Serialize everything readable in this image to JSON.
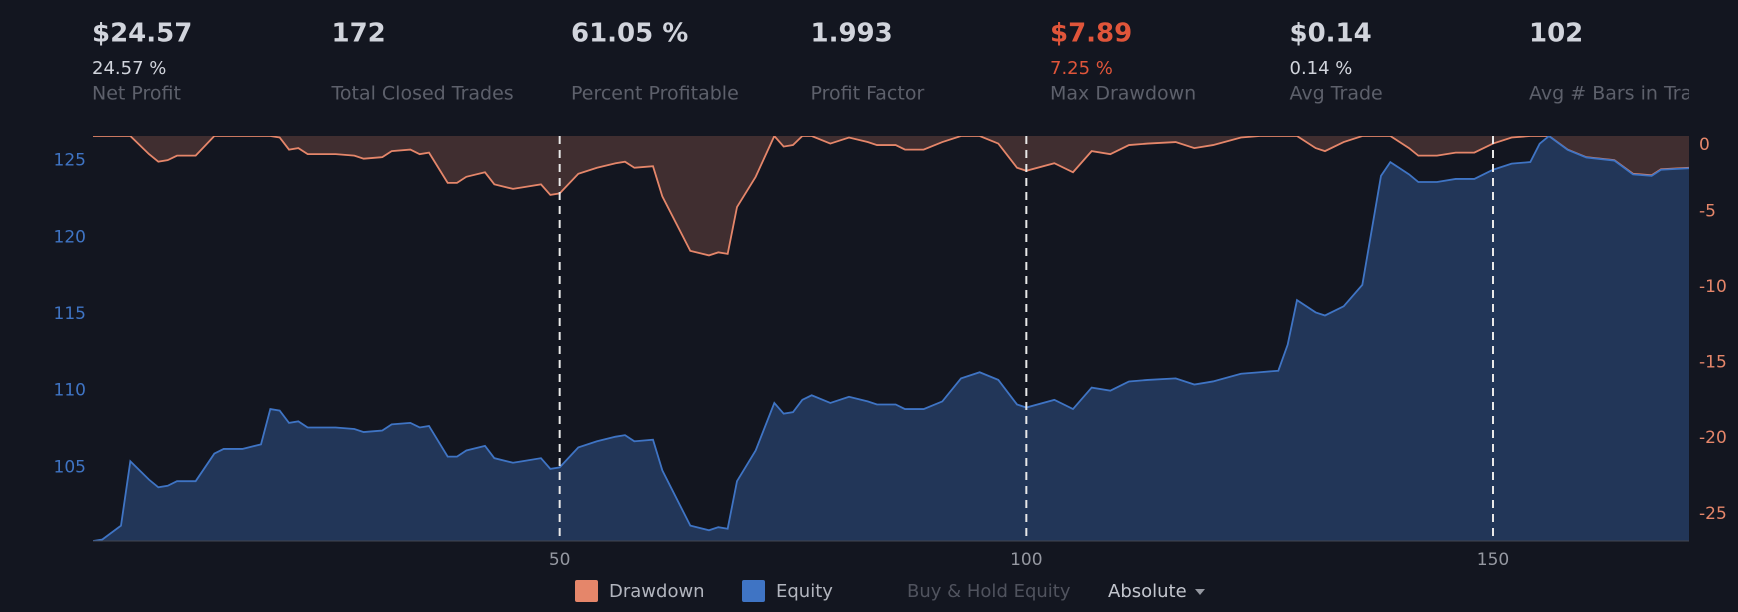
{
  "stats": [
    {
      "value": "$24.57",
      "sub": "24.57 %",
      "label": "Net Profit"
    },
    {
      "value": "172",
      "label": "Total Closed Trades"
    },
    {
      "value": "61.05 %",
      "label": "Percent Profitable"
    },
    {
      "value": "1.993",
      "label": "Profit Factor"
    },
    {
      "value": "$7.89",
      "sub": "7.25 %",
      "label": "Max Drawdown",
      "color": "#e0553a"
    },
    {
      "value": "$0.14",
      "sub": "0.14 %",
      "label": "Avg Trade"
    },
    {
      "value": "102",
      "label": "Avg # Bars in Tra"
    }
  ],
  "chart_data": {
    "type": "area",
    "x": [
      0,
      1,
      3,
      4,
      6,
      7,
      8,
      9,
      11,
      13,
      14,
      16,
      18,
      19,
      20,
      21,
      22,
      23,
      26,
      28,
      29,
      31,
      32,
      34,
      35,
      36,
      38,
      39,
      40,
      42,
      43,
      45,
      46,
      48,
      49,
      50,
      52,
      54,
      56,
      57,
      58,
      60,
      61,
      64,
      66,
      67,
      68,
      69,
      71,
      73,
      74,
      75,
      76,
      77,
      79,
      81,
      83,
      84,
      86,
      87,
      89,
      91,
      93,
      95,
      97,
      99,
      100,
      103,
      105,
      107,
      109,
      111,
      113,
      116,
      118,
      120,
      123,
      125,
      127,
      128,
      129,
      131,
      132,
      134,
      136,
      138,
      139,
      141,
      142,
      144,
      146,
      148,
      150,
      152,
      154,
      155,
      156,
      158,
      160,
      163,
      165,
      167,
      168,
      171
    ],
    "series": [
      {
        "name": "Drawdown",
        "color": "#e5866a",
        "axis": "y2",
        "values": [
          0,
          0,
          0,
          0,
          -1.2,
          -1.7,
          -1.6,
          -1.3,
          -1.3,
          0,
          0,
          0,
          0,
          0,
          -0.1,
          -0.9,
          -0.8,
          -1.2,
          -1.2,
          -1.3,
          -1.5,
          -1.4,
          -1.0,
          -0.9,
          -1.2,
          -1.1,
          -3.1,
          -3.1,
          -2.7,
          -2.4,
          -3.2,
          -3.5,
          -3.4,
          -3.2,
          -3.9,
          -3.8,
          -2.5,
          -2.1,
          -1.8,
          -1.7,
          -2.1,
          -2.0,
          -4.0,
          -7.6,
          -7.9,
          -7.7,
          -7.8,
          -4.7,
          -2.7,
          0,
          -0.7,
          -0.6,
          0,
          0,
          -0.5,
          -0.1,
          -0.4,
          -0.6,
          -0.6,
          -0.9,
          -0.9,
          -0.4,
          0,
          0,
          -0.5,
          -2.1,
          -2.3,
          -1.8,
          -2.4,
          -1.0,
          -1.2,
          -0.6,
          -0.5,
          -0.4,
          -0.8,
          -0.6,
          -0.1,
          0,
          0,
          0,
          0,
          -0.8,
          -1.0,
          -0.4,
          0,
          0,
          0,
          -0.8,
          -1.3,
          -1.3,
          -1.1,
          -1.1,
          -0.5,
          -0.1,
          0,
          0,
          0,
          -0.9,
          -1.4,
          -1.6,
          -2.5,
          -2.6,
          -2.2,
          -2.1
        ]
      },
      {
        "name": "Equity",
        "color": "#3f74c4",
        "values": [
          100.2,
          100.3,
          101.2,
          105.4,
          104.2,
          103.7,
          103.8,
          104.1,
          104.1,
          105.9,
          106.2,
          106.2,
          106.5,
          108.8,
          108.7,
          107.9,
          108.0,
          107.6,
          107.6,
          107.5,
          107.3,
          107.4,
          107.8,
          107.9,
          107.6,
          107.7,
          105.7,
          105.7,
          106.1,
          106.4,
          105.6,
          105.3,
          105.4,
          105.6,
          104.9,
          105.0,
          106.3,
          106.7,
          107.0,
          107.1,
          106.7,
          106.8,
          104.8,
          101.2,
          100.9,
          101.1,
          101.0,
          104.1,
          106.1,
          109.2,
          108.5,
          108.6,
          109.4,
          109.7,
          109.2,
          109.6,
          109.3,
          109.1,
          109.1,
          108.8,
          108.8,
          109.3,
          110.8,
          111.2,
          110.7,
          109.1,
          108.9,
          109.4,
          108.8,
          110.2,
          110.0,
          110.6,
          110.7,
          110.8,
          110.4,
          110.6,
          111.1,
          111.2,
          111.3,
          113.0,
          115.9,
          115.1,
          114.9,
          115.5,
          116.9,
          124.0,
          124.9,
          124.1,
          123.6,
          123.6,
          123.8,
          123.8,
          124.4,
          124.8,
          124.9,
          126.1,
          126.6,
          125.7,
          125.2,
          125.0,
          124.1,
          124.0,
          124.4,
          124.5
        ]
      }
    ],
    "xlim": [
      0,
      171
    ],
    "xticks": [
      50,
      100,
      150
    ],
    "ylim": [
      100.2,
      126.6
    ],
    "yticks": [
      105,
      110,
      115,
      120,
      125
    ],
    "y2lim": [
      -26.8,
      0
    ],
    "y2ticks": [
      0,
      -5,
      -10,
      -15,
      -20,
      -25
    ],
    "grid": true,
    "buy_hold_label": "Buy & Hold Equity",
    "scale_mode": "Absolute"
  }
}
